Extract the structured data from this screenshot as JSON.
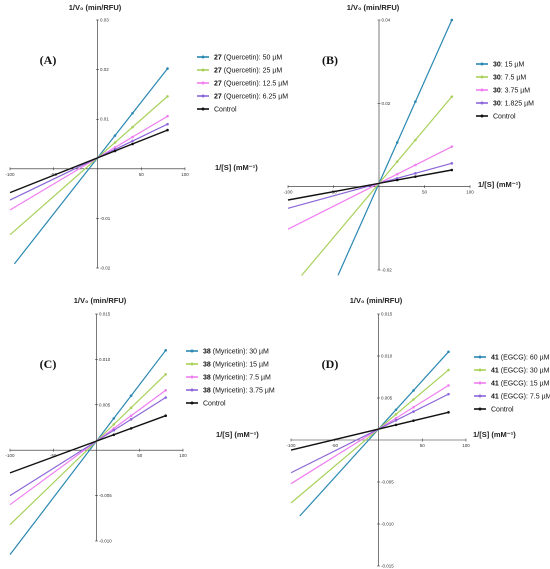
{
  "chart_data": [
    {
      "type": "line",
      "panel_label": "(A)",
      "y_title": "1/V₀ (min/RFU)",
      "x_title": "1/[S] (mM⁻¹)",
      "xlim": [
        -100,
        100
      ],
      "ylim": [
        -0.02,
        0.03
      ],
      "x_ticks": [
        {
          "value": -100,
          "label": "-100"
        },
        {
          "value": -50,
          "label": "-50"
        },
        {
          "value": 50,
          "label": "50"
        },
        {
          "value": 100,
          "label": "100"
        }
      ],
      "y_ticks": [
        {
          "value": -0.02,
          "label": "-0.02"
        },
        {
          "value": -0.01,
          "label": "-0.01"
        },
        {
          "value": 0.01,
          "label": "0.01"
        },
        {
          "value": 0.02,
          "label": "0.02"
        },
        {
          "value": 0.03,
          "label": "0.03"
        }
      ],
      "x_points": [
        20,
        40,
        80
      ],
      "series": [
        {
          "compound": "27",
          "label": "(Quercetin): 50 µM",
          "color": "#2a88b2",
          "slope": 0.000225,
          "intercept": 0.0022,
          "x_line": [
            -95,
            80
          ]
        },
        {
          "compound": "27",
          "label": "(Quercetin): 25 µM",
          "color": "#a8d05a",
          "slope": 0.000155,
          "intercept": 0.0022,
          "x_line": [
            -100,
            80
          ]
        },
        {
          "compound": "27",
          "label": "(Quercetin): 12.5 µM",
          "color": "#f07ef0",
          "slope": 0.000105,
          "intercept": 0.0022,
          "x_line": [
            -100,
            80
          ]
        },
        {
          "compound": "27",
          "label": "(Quercetin): 6.25 µM",
          "color": "#8b67d8",
          "slope": 8.5e-05,
          "intercept": 0.0022,
          "x_line": [
            -100,
            80
          ]
        },
        {
          "compound": "",
          "label": "Control",
          "color": "#111111",
          "slope": 7e-05,
          "intercept": 0.0022,
          "x_line": [
            -100,
            80
          ]
        }
      ]
    },
    {
      "type": "line",
      "panel_label": "(B)",
      "y_title": "1/V₀ (min/RFU)",
      "x_title": "1/[S] (mM⁻¹)",
      "xlim": [
        -100,
        100
      ],
      "ylim": [
        -0.02,
        0.04
      ],
      "x_ticks": [
        {
          "value": -100,
          "label": "-100"
        },
        {
          "value": -50,
          "label": "-50"
        },
        {
          "value": 50,
          "label": "50"
        },
        {
          "value": 100,
          "label": "100"
        }
      ],
      "y_ticks": [
        {
          "value": -0.02,
          "label": "-0.02"
        },
        {
          "value": 0.02,
          "label": "0.02"
        },
        {
          "value": 0.04,
          "label": "0.04"
        }
      ],
      "x_points": [
        20,
        40,
        80
      ],
      "series": [
        {
          "compound": "30",
          "label": ": 15 µM",
          "color": "#2a88b2",
          "slope": 0.00049,
          "intercept": 0.0008,
          "x_line": [
            -45,
            80
          ]
        },
        {
          "compound": "30",
          "label": ": 7.5 µM",
          "color": "#a8d05a",
          "slope": 0.00026,
          "intercept": 0.0008,
          "x_line": [
            -85,
            80
          ]
        },
        {
          "compound": "30",
          "label": ": 3.75 µM",
          "color": "#f07ef0",
          "slope": 0.00011,
          "intercept": 0.0008,
          "x_line": [
            -100,
            80
          ]
        },
        {
          "compound": "30",
          "label": ": 1.825 µM",
          "color": "#8b67d8",
          "slope": 6e-05,
          "intercept": 0.0008,
          "x_line": [
            -100,
            80
          ]
        },
        {
          "compound": "",
          "label": "Control",
          "color": "#111111",
          "slope": 4e-05,
          "intercept": 0.0008,
          "x_line": [
            -100,
            80
          ]
        }
      ]
    },
    {
      "type": "line",
      "panel_label": "(C)",
      "y_title": "1/V₀ (min/RFU)",
      "x_title": "1/[S] (mM⁻¹)",
      "xlim": [
        -100,
        100
      ],
      "ylim": [
        -0.01,
        0.015
      ],
      "x_ticks": [
        {
          "value": -100,
          "label": "-100"
        },
        {
          "value": -50,
          "label": "-50"
        },
        {
          "value": 50,
          "label": "50"
        },
        {
          "value": 100,
          "label": "100"
        }
      ],
      "y_ticks": [
        {
          "value": -0.01,
          "label": "-0.010"
        },
        {
          "value": -0.005,
          "label": "-0.005"
        },
        {
          "value": 0.005,
          "label": "0.005"
        },
        {
          "value": 0.01,
          "label": "0.010"
        },
        {
          "value": 0.015,
          "label": "0.015"
        }
      ],
      "x_points": [
        20,
        40,
        80
      ],
      "series": [
        {
          "compound": "38",
          "label": "(Myricetin): 30 µM",
          "color": "#2a88b2",
          "slope": 0.000125,
          "intercept": 0.001,
          "x_line": [
            -100,
            80
          ]
        },
        {
          "compound": "38",
          "label": "(Myricetin): 15 µM",
          "color": "#a8d05a",
          "slope": 9.2e-05,
          "intercept": 0.001,
          "x_line": [
            -100,
            80
          ]
        },
        {
          "compound": "38",
          "label": "(Myricetin): 7.5 µM",
          "color": "#f07ef0",
          "slope": 7e-05,
          "intercept": 0.001,
          "x_line": [
            -100,
            80
          ]
        },
        {
          "compound": "38",
          "label": "(Myricetin): 3.75 µM",
          "color": "#8b67d8",
          "slope": 6e-05,
          "intercept": 0.001,
          "x_line": [
            -100,
            80
          ]
        },
        {
          "compound": "",
          "label": "Control",
          "color": "#111111",
          "slope": 3.5e-05,
          "intercept": 0.001,
          "x_line": [
            -100,
            80
          ]
        }
      ]
    },
    {
      "type": "line",
      "panel_label": "(D)",
      "y_title": "1/V₀ (min/RFU)",
      "x_title": "1/[S] (mM⁻¹)",
      "xlim": [
        -100,
        100
      ],
      "ylim": [
        -0.015,
        0.015
      ],
      "x_ticks": [
        {
          "value": -100,
          "label": "-100"
        },
        {
          "value": -50,
          "label": "-50"
        },
        {
          "value": 50,
          "label": "50"
        },
        {
          "value": 100,
          "label": "100"
        }
      ],
      "y_ticks": [
        {
          "value": -0.015,
          "label": "-0.015"
        },
        {
          "value": -0.01,
          "label": "-0.010"
        },
        {
          "value": -0.005,
          "label": "-0.005"
        },
        {
          "value": 0.005,
          "label": "0.005"
        },
        {
          "value": 0.01,
          "label": "0.010"
        },
        {
          "value": 0.015,
          "label": "0.015"
        }
      ],
      "x_points": [
        20,
        40,
        80
      ],
      "series": [
        {
          "compound": "41",
          "label": "(EGCG): 60 µM",
          "color": "#2a88b2",
          "slope": 0.000115,
          "intercept": 0.0013,
          "x_line": [
            -90,
            80
          ]
        },
        {
          "compound": "41",
          "label": "(EGCG): 30 µM",
          "color": "#a8d05a",
          "slope": 8.8e-05,
          "intercept": 0.0013,
          "x_line": [
            -100,
            80
          ]
        },
        {
          "compound": "41",
          "label": "(EGCG): 15 µM",
          "color": "#f07ef0",
          "slope": 6.5e-05,
          "intercept": 0.0013,
          "x_line": [
            -100,
            80
          ]
        },
        {
          "compound": "41",
          "label": "(EGCG): 7.5 µM",
          "color": "#8b67d8",
          "slope": 5.2e-05,
          "intercept": 0.0013,
          "x_line": [
            -100,
            80
          ]
        },
        {
          "compound": "",
          "label": "Control",
          "color": "#111111",
          "slope": 2.5e-05,
          "intercept": 0.0013,
          "x_line": [
            -100,
            80
          ]
        }
      ]
    }
  ]
}
